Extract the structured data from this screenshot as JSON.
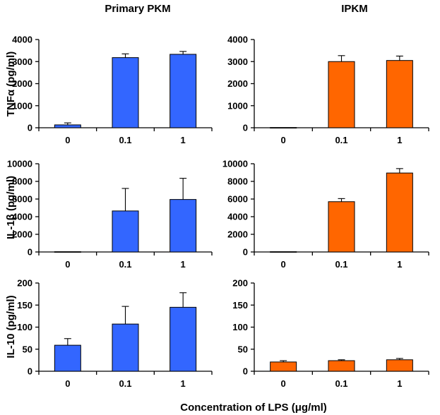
{
  "figure": {
    "column_titles": [
      "Primary PKM",
      "IPKM"
    ],
    "row_labels": [
      "TNFα (pg/ml)",
      "IL-1β (pg/ml)",
      "IL-10 (pg/ml)"
    ],
    "x_axis_title": "Concentration of LPS (μg/ml)",
    "colors": {
      "primary": "#3366ff",
      "ipkm": "#ff6600",
      "axis": "#000000"
    }
  },
  "chart_data": [
    {
      "type": "bar",
      "title": "Primary PKM",
      "ylabel": "TNFα (pg/ml)",
      "xlabel": "",
      "categories": [
        "0",
        "0.1",
        "1"
      ],
      "values": [
        130,
        3180,
        3330
      ],
      "errors": [
        90,
        170,
        130
      ],
      "ylim": [
        0,
        4000
      ],
      "yticks": [
        0,
        1000,
        2000,
        3000,
        4000
      ],
      "color": "#3366ff"
    },
    {
      "type": "bar",
      "title": "IPKM",
      "ylabel": "",
      "xlabel": "",
      "categories": [
        "0",
        "0.1",
        "1"
      ],
      "values": [
        10,
        3000,
        3050
      ],
      "errors": [
        0,
        270,
        200
      ],
      "ylim": [
        0,
        4000
      ],
      "yticks": [
        0,
        1000,
        2000,
        3000,
        4000
      ],
      "color": "#ff6600"
    },
    {
      "type": "bar",
      "title": "",
      "ylabel": "IL-1β (pg/ml)",
      "xlabel": "",
      "categories": [
        "0",
        "0.1",
        "1"
      ],
      "values": [
        30,
        4650,
        5950
      ],
      "errors": [
        0,
        2550,
        2400
      ],
      "ylim": [
        0,
        10000
      ],
      "yticks": [
        0,
        2000,
        4000,
        6000,
        8000,
        10000
      ],
      "color": "#3366ff"
    },
    {
      "type": "bar",
      "title": "",
      "ylabel": "",
      "xlabel": "",
      "categories": [
        "0",
        "0.1",
        "1"
      ],
      "values": [
        30,
        5700,
        8950
      ],
      "errors": [
        0,
        350,
        500
      ],
      "ylim": [
        0,
        10000
      ],
      "yticks": [
        0,
        2000,
        4000,
        6000,
        8000,
        10000
      ],
      "color": "#ff6600"
    },
    {
      "type": "bar",
      "title": "",
      "ylabel": "IL-10 (pg/ml)",
      "xlabel": "",
      "categories": [
        "0",
        "0.1",
        "1"
      ],
      "values": [
        59,
        107,
        145
      ],
      "errors": [
        15,
        40,
        33
      ],
      "ylim": [
        0,
        200
      ],
      "yticks": [
        0,
        50,
        100,
        150,
        200
      ],
      "color": "#3366ff"
    },
    {
      "type": "bar",
      "title": "",
      "ylabel": "",
      "xlabel": "Concentration of LPS (μg/ml)",
      "categories": [
        "0",
        "0.1",
        "1"
      ],
      "values": [
        21,
        24,
        26
      ],
      "errors": [
        3,
        2,
        3
      ],
      "ylim": [
        0,
        200
      ],
      "yticks": [
        0,
        50,
        100,
        150,
        200
      ],
      "color": "#ff6600"
    }
  ]
}
